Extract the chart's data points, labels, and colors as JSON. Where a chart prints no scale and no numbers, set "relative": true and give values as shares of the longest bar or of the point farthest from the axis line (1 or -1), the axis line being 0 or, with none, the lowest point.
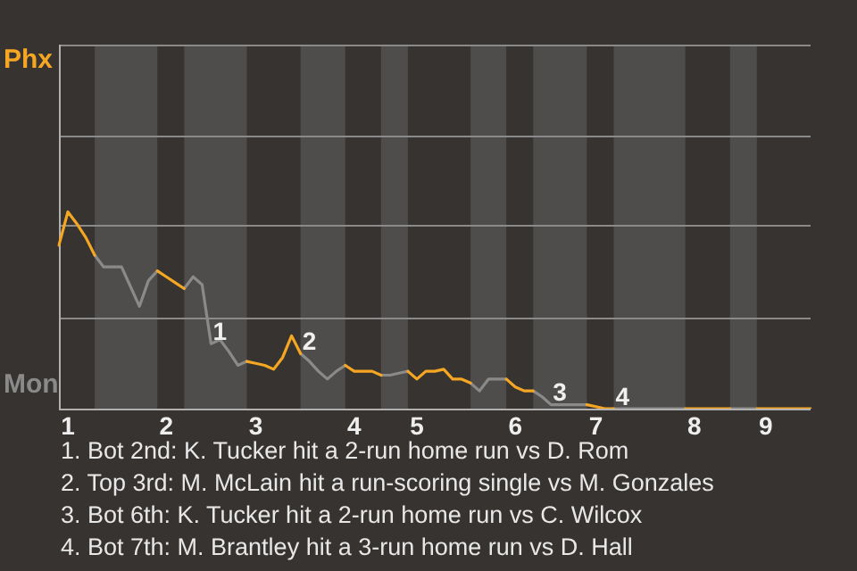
{
  "chart_data": {
    "type": "line",
    "relative": true,
    "categories": [
      null,
      "1",
      null,
      null,
      null,
      null,
      null,
      null,
      null,
      null,
      null,
      null,
      "2",
      null,
      null,
      null,
      null,
      null,
      null,
      null,
      null,
      null,
      "3",
      null,
      null,
      null,
      null,
      null,
      null,
      null,
      null,
      null,
      null,
      "4",
      null,
      null,
      null,
      null,
      null,
      null,
      "5",
      null,
      null,
      null,
      null,
      null,
      null,
      null,
      null,
      null,
      null,
      "6",
      null,
      null,
      null,
      null,
      null,
      null,
      null,
      null,
      "7",
      null,
      null,
      null,
      null,
      null,
      null,
      null,
      null,
      null,
      null,
      "8",
      null,
      null,
      null,
      null,
      null,
      null,
      null,
      "9",
      null,
      null,
      null,
      null,
      null
    ],
    "ref_lines": [
      {
        "axis": "y",
        "value": 0.46
      },
      {
        "axis": "y",
        "value": 0.93
      },
      {
        "axis": "y",
        "value": 1.39
      },
      {
        "axis": "y",
        "value": 1.85
      }
    ],
    "legend": "left",
    "series": [
      {
        "name": "Phx",
        "color": "#f5a623",
        "values": [
          0.83,
          1,
          0.94,
          0.87,
          0.78,
          null,
          null,
          null,
          null,
          null,
          null,
          0.7,
          0.67,
          0.64,
          0.61,
          null,
          null,
          null,
          null,
          null,
          null,
          0.24,
          0.23,
          0.22,
          0.2,
          0.26,
          0.37,
          0.28,
          null,
          null,
          null,
          null,
          0.22,
          0.19,
          0.19,
          0.19,
          0.17,
          null,
          null,
          0.19,
          0.15,
          0.19,
          0.19,
          0.2,
          0.15,
          0.15,
          0.13,
          null,
          null,
          null,
          0.15,
          0.11,
          0.09,
          0.09,
          null,
          null,
          null,
          null,
          null,
          0.02,
          0.01,
          0,
          0,
          null,
          null,
          null,
          null,
          null,
          null,
          null,
          0,
          0,
          0,
          0,
          0,
          0,
          null,
          null,
          0,
          0,
          0,
          0,
          0,
          0,
          0
        ]
      },
      {
        "name": "Mon",
        "color": "#8a8a8a",
        "values": [
          null,
          null,
          null,
          null,
          0.78,
          0.72,
          0.72,
          0.72,
          0.62,
          0.52,
          0.65,
          0.7,
          null,
          null,
          0.61,
          0.67,
          0.63,
          0.33,
          0.35,
          0.29,
          0.22,
          0.24,
          null,
          null,
          null,
          null,
          null,
          0.28,
          0.24,
          0.19,
          0.15,
          0.19,
          0.22,
          null,
          null,
          null,
          0.17,
          0.17,
          0.18,
          0.19,
          null,
          null,
          null,
          null,
          null,
          null,
          0.13,
          0.09,
          0.15,
          0.15,
          0.15,
          null,
          null,
          0.09,
          0.06,
          0.02,
          0.02,
          0.02,
          0.02,
          0.02,
          null,
          null,
          0,
          0,
          0,
          0,
          0,
          0,
          0,
          0,
          0,
          null,
          null,
          null,
          null,
          0,
          0,
          0,
          0,
          null,
          null,
          null,
          null,
          null,
          null
        ]
      }
    ],
    "annotations": [
      {
        "text": "1",
        "y": 0.33
      },
      {
        "text": "2",
        "y": 0.28
      },
      {
        "text": "3",
        "y": 0.02
      },
      {
        "text": "4",
        "y": 0
      },
      "1. Bot 2nd: K. Tucker hit a 2-run home run vs D. Rom",
      "2. Top 3rd: M. McLain hit a run-scoring single vs M. Gonzales",
      "3. Bot 6th: K. Tucker hit a 2-run home run vs C. Wilcox",
      "4. Bot 7th: M. Brantley hit a 3-run home run vs D. Hall"
    ]
  }
}
